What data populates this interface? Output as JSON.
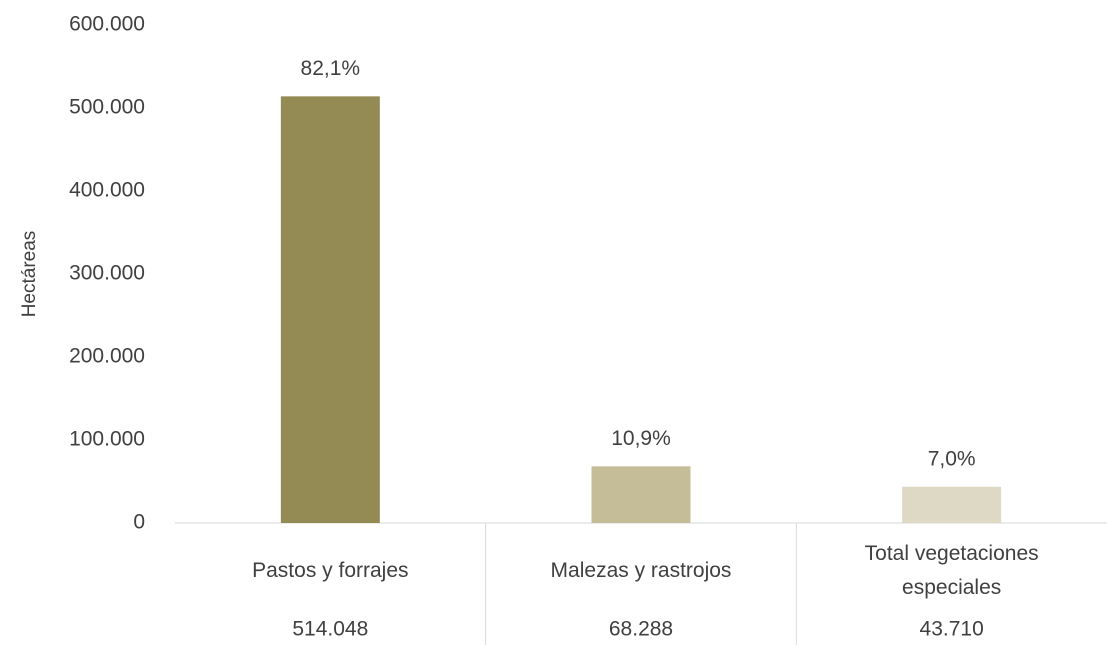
{
  "chart_data": {
    "type": "bar",
    "y_axis_label": "Hectáreas",
    "categories": [
      "Pastos y forrajes",
      "Malezas y rastrojos",
      "Total vegetaciones especiales"
    ],
    "values": [
      514048,
      68288,
      43710
    ],
    "value_labels": [
      "514.048",
      "68.288",
      "43.710"
    ],
    "percentages": [
      82.1,
      10.9,
      7.0
    ],
    "percentage_labels": [
      "82,1%",
      "10,9%",
      "7,0%"
    ],
    "colors": [
      "#948a54",
      "#c4bd97",
      "#ddd9c4"
    ],
    "ylim": [
      0,
      600000
    ],
    "yticks": [
      0,
      {
        "value": 100000,
        "label": "100.000"
      },
      {
        "value": 200000,
        "label": "200.000"
      },
      {
        "value": 300000,
        "label": "300.000"
      },
      {
        "value": 400000,
        "label": "400.000"
      },
      {
        "value": 500000,
        "label": "500.000"
      },
      {
        "value": 600000,
        "label": "600.000"
      }
    ],
    "grid": false
  }
}
